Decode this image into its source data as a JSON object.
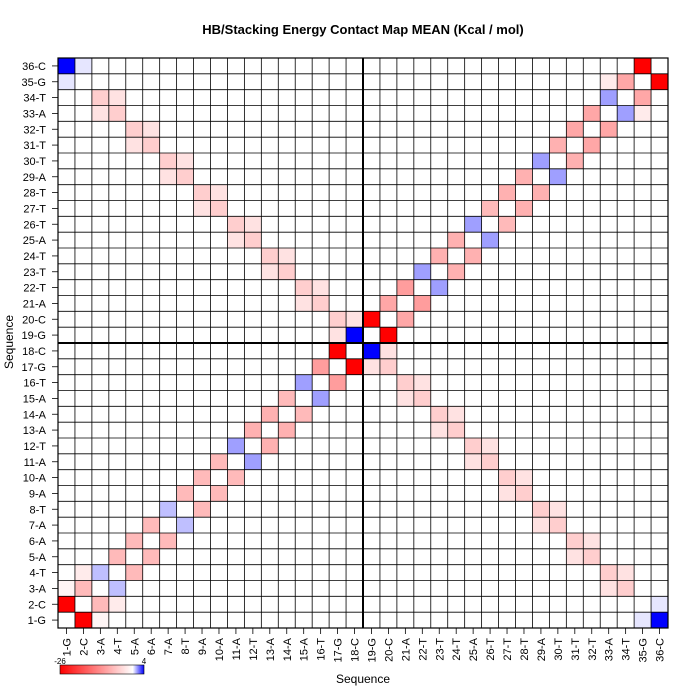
{
  "chart_data": {
    "type": "heatmap",
    "title": "HB/Stacking Energy Contact Map MEAN (Kcal / mol)",
    "xlabel": "Sequence",
    "ylabel": "Sequence",
    "x_ticks": [
      "1-G",
      "2-C",
      "3-A",
      "4-T",
      "5-A",
      "6-A",
      "7-A",
      "8-T",
      "9-A",
      "10-A",
      "11-A",
      "12-T",
      "13-A",
      "14-A",
      "15-A",
      "16-T",
      "17-G",
      "18-C",
      "19-G",
      "20-C",
      "21-A",
      "22-T",
      "23-T",
      "24-T",
      "25-A",
      "26-T",
      "27-T",
      "28-T",
      "29-A",
      "30-T",
      "31-T",
      "32-T",
      "33-A",
      "34-T",
      "35-G",
      "36-C"
    ],
    "y_ticks": [
      "1-G",
      "2-C",
      "3-A",
      "4-T",
      "5-A",
      "6-A",
      "7-A",
      "8-T",
      "9-A",
      "10-A",
      "11-A",
      "12-T",
      "13-A",
      "14-A",
      "15-A",
      "16-T",
      "17-G",
      "18-C",
      "19-G",
      "20-C",
      "21-A",
      "22-T",
      "23-T",
      "24-T",
      "25-A",
      "26-T",
      "27-T",
      "28-T",
      "29-A",
      "30-T",
      "31-T",
      "32-T",
      "33-A",
      "34-T",
      "35-G",
      "36-C"
    ],
    "colorbar": {
      "min_label": "-26",
      "max_label": "4",
      "min": -26,
      "max": 4,
      "low_color": "#ff0000",
      "mid_color": "#ffffff",
      "high_color": "#0000ff"
    },
    "divider_after_index": 18,
    "cells": [
      [
        1,
        2,
        -26
      ],
      [
        2,
        1,
        -26
      ],
      [
        35,
        36,
        -26
      ],
      [
        36,
        35,
        -26
      ],
      [
        17,
        18,
        -26
      ],
      [
        18,
        17,
        -26
      ],
      [
        19,
        20,
        -26
      ],
      [
        20,
        19,
        -26
      ],
      [
        1,
        36,
        4
      ],
      [
        36,
        1,
        4
      ],
      [
        18,
        19,
        4
      ],
      [
        19,
        18,
        4
      ],
      [
        2,
        3,
        -7
      ],
      [
        3,
        2,
        -7
      ],
      [
        3,
        4,
        -7
      ],
      [
        4,
        3,
        -7
      ],
      [
        4,
        5,
        -7
      ],
      [
        5,
        4,
        -7
      ],
      [
        5,
        6,
        -7
      ],
      [
        6,
        5,
        -7
      ],
      [
        6,
        7,
        -7
      ],
      [
        7,
        6,
        -7
      ],
      [
        7,
        8,
        -7
      ],
      [
        8,
        7,
        -7
      ],
      [
        8,
        9,
        -7
      ],
      [
        9,
        8,
        -7
      ],
      [
        9,
        10,
        -7
      ],
      [
        10,
        9,
        -7
      ],
      [
        10,
        11,
        -7
      ],
      [
        11,
        10,
        -7
      ],
      [
        11,
        12,
        -9
      ],
      [
        12,
        11,
        -9
      ],
      [
        12,
        13,
        -8
      ],
      [
        13,
        12,
        -8
      ],
      [
        13,
        14,
        -8
      ],
      [
        14,
        13,
        -8
      ],
      [
        14,
        15,
        -7
      ],
      [
        15,
        14,
        -7
      ],
      [
        15,
        16,
        -9
      ],
      [
        16,
        15,
        -9
      ],
      [
        16,
        17,
        -10
      ],
      [
        17,
        16,
        -10
      ],
      [
        20,
        21,
        -9
      ],
      [
        21,
        20,
        -9
      ],
      [
        21,
        22,
        -10
      ],
      [
        22,
        21,
        -10
      ],
      [
        22,
        23,
        -8
      ],
      [
        23,
        22,
        -8
      ],
      [
        23,
        24,
        -8
      ],
      [
        24,
        23,
        -8
      ],
      [
        24,
        25,
        -8
      ],
      [
        25,
        24,
        -8
      ],
      [
        25,
        26,
        -9
      ],
      [
        26,
        25,
        -9
      ],
      [
        26,
        27,
        -7
      ],
      [
        27,
        26,
        -7
      ],
      [
        27,
        28,
        -8
      ],
      [
        28,
        27,
        -8
      ],
      [
        28,
        29,
        -8
      ],
      [
        29,
        28,
        -8
      ],
      [
        29,
        30,
        -8
      ],
      [
        30,
        29,
        -8
      ],
      [
        30,
        31,
        -8
      ],
      [
        31,
        30,
        -8
      ],
      [
        31,
        32,
        -9
      ],
      [
        32,
        31,
        -9
      ],
      [
        32,
        33,
        -9
      ],
      [
        33,
        32,
        -9
      ],
      [
        33,
        34,
        -9
      ],
      [
        34,
        33,
        -9
      ],
      [
        34,
        35,
        -9
      ],
      [
        35,
        34,
        -9
      ],
      [
        3,
        4,
        1
      ],
      [
        4,
        3,
        1
      ],
      [
        7,
        8,
        1
      ],
      [
        8,
        7,
        1
      ],
      [
        11,
        12,
        1.5
      ],
      [
        12,
        11,
        1.5
      ],
      [
        15,
        16,
        1.5
      ],
      [
        16,
        15,
        1.5
      ],
      [
        22,
        23,
        1.5
      ],
      [
        23,
        22,
        1.5
      ],
      [
        25,
        26,
        1.5
      ],
      [
        26,
        25,
        1.5
      ],
      [
        29,
        30,
        1.5
      ],
      [
        30,
        29,
        1.5
      ],
      [
        33,
        34,
        1.5
      ],
      [
        34,
        33,
        1.5
      ],
      [
        3,
        34,
        -5
      ],
      [
        34,
        3,
        -5
      ],
      [
        4,
        33,
        -5
      ],
      [
        33,
        4,
        -5
      ],
      [
        5,
        32,
        -5
      ],
      [
        32,
        5,
        -5
      ],
      [
        6,
        31,
        -5
      ],
      [
        31,
        6,
        -5
      ],
      [
        7,
        30,
        -5
      ],
      [
        30,
        7,
        -5
      ],
      [
        8,
        29,
        -5
      ],
      [
        29,
        8,
        -5
      ],
      [
        9,
        28,
        -5
      ],
      [
        28,
        9,
        -5
      ],
      [
        10,
        27,
        -5
      ],
      [
        27,
        10,
        -5
      ],
      [
        11,
        26,
        -5
      ],
      [
        26,
        11,
        -5
      ],
      [
        12,
        25,
        -5
      ],
      [
        25,
        12,
        -5
      ],
      [
        13,
        24,
        -5
      ],
      [
        24,
        13,
        -5
      ],
      [
        14,
        23,
        -5
      ],
      [
        23,
        14,
        -5
      ],
      [
        15,
        22,
        -5
      ],
      [
        22,
        15,
        -5
      ],
      [
        16,
        21,
        -5
      ],
      [
        21,
        16,
        -5
      ],
      [
        17,
        20,
        -5
      ],
      [
        20,
        17,
        -5
      ],
      [
        3,
        33,
        -3
      ],
      [
        33,
        3,
        -3
      ],
      [
        4,
        34,
        -3
      ],
      [
        34,
        4,
        -3
      ],
      [
        5,
        31,
        -3
      ],
      [
        31,
        5,
        -3
      ],
      [
        6,
        32,
        -3
      ],
      [
        32,
        6,
        -3
      ],
      [
        7,
        29,
        -3
      ],
      [
        29,
        7,
        -3
      ],
      [
        8,
        30,
        -3
      ],
      [
        30,
        8,
        -3
      ],
      [
        9,
        27,
        -3
      ],
      [
        27,
        9,
        -3
      ],
      [
        10,
        28,
        -3
      ],
      [
        28,
        10,
        -3
      ],
      [
        11,
        25,
        -3
      ],
      [
        25,
        11,
        -3
      ],
      [
        12,
        26,
        -3
      ],
      [
        26,
        12,
        -3
      ],
      [
        13,
        23,
        -3
      ],
      [
        23,
        13,
        -3
      ],
      [
        14,
        24,
        -3
      ],
      [
        24,
        14,
        -3
      ],
      [
        15,
        21,
        -3
      ],
      [
        21,
        15,
        -3
      ],
      [
        16,
        22,
        -3
      ],
      [
        22,
        16,
        -3
      ],
      [
        17,
        19,
        -3
      ],
      [
        19,
        17,
        -3
      ],
      [
        18,
        20,
        -3
      ],
      [
        20,
        18,
        -3
      ],
      [
        2,
        4,
        -2
      ],
      [
        4,
        2,
        -2
      ],
      [
        35,
        33,
        -2
      ],
      [
        33,
        35,
        -2
      ],
      [
        1,
        3,
        -1
      ],
      [
        3,
        1,
        -1
      ],
      [
        2,
        36,
        0.4
      ],
      [
        36,
        2,
        0.4
      ],
      [
        1,
        35,
        0.4
      ],
      [
        35,
        1,
        0.4
      ]
    ]
  }
}
